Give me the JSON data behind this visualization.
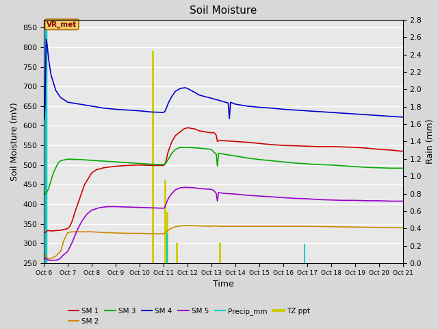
{
  "title": "Soil Moisture",
  "ylabel_left": "Soil Moisture (mV)",
  "ylabel_right": "Rain (mm)",
  "xlabel": "Time",
  "ylim_left": [
    250,
    870
  ],
  "ylim_right": [
    0.0,
    2.8
  ],
  "yticks_left": [
    250,
    300,
    350,
    400,
    450,
    500,
    550,
    600,
    650,
    700,
    750,
    800,
    850
  ],
  "yticks_right": [
    0.0,
    0.2,
    0.4,
    0.6,
    0.8,
    1.0,
    1.2,
    1.4,
    1.6,
    1.8,
    2.0,
    2.2,
    2.4,
    2.6,
    2.8
  ],
  "x_tick_days": [
    6,
    7,
    8,
    9,
    10,
    11,
    12,
    13,
    14,
    15,
    16,
    17,
    18,
    19,
    20,
    21
  ],
  "x_tick_labels": [
    "Oct 6",
    "Oct 7",
    "Oct 8",
    "Oct 9",
    "Oct 10",
    "Oct 11",
    "Oct 12",
    "Oct 13",
    "Oct 14",
    "Oct 15",
    "Oct 16",
    "Oct 17",
    "Oct 18",
    "Oct 19",
    "Oct 20",
    "Oct 21"
  ],
  "fig_bg_color": "#d8d8d8",
  "plot_bg_color": "#e8e8e8",
  "colors": {
    "SM1": "#cc0000",
    "SM2": "#cc8800",
    "SM3": "#00aa00",
    "SM4": "#0000cc",
    "SM5": "#9900cc",
    "Precip": "#00cccc",
    "TZ": "#cccc00"
  },
  "vr_met_box_facecolor": "#f0d070",
  "vr_met_box_edgecolor": "#aa6600",
  "vr_met_text_color": "#880000",
  "sm1": [
    [
      6.0,
      330
    ],
    [
      6.05,
      328
    ],
    [
      6.1,
      330
    ],
    [
      6.15,
      333
    ],
    [
      6.2,
      333
    ],
    [
      6.3,
      332
    ],
    [
      6.5,
      333
    ],
    [
      6.7,
      334
    ],
    [
      7.0,
      338
    ],
    [
      7.1,
      345
    ],
    [
      7.2,
      360
    ],
    [
      7.3,
      380
    ],
    [
      7.5,
      415
    ],
    [
      7.7,
      450
    ],
    [
      7.9,
      470
    ],
    [
      8.0,
      480
    ],
    [
      8.2,
      488
    ],
    [
      8.5,
      493
    ],
    [
      9.0,
      497
    ],
    [
      9.5,
      499
    ],
    [
      10.0,
      500
    ],
    [
      10.5,
      499
    ],
    [
      11.0,
      499
    ],
    [
      11.05,
      501
    ],
    [
      11.1,
      510
    ],
    [
      11.2,
      535
    ],
    [
      11.35,
      560
    ],
    [
      11.5,
      575
    ],
    [
      11.7,
      585
    ],
    [
      11.85,
      592
    ],
    [
      12.0,
      595
    ],
    [
      12.3,
      592
    ],
    [
      12.5,
      587
    ],
    [
      13.0,
      582
    ],
    [
      13.1,
      583
    ],
    [
      13.2,
      576
    ],
    [
      13.25,
      560
    ],
    [
      13.3,
      562
    ],
    [
      13.5,
      562
    ],
    [
      14.0,
      560
    ],
    [
      14.5,
      558
    ],
    [
      15.0,
      555
    ],
    [
      15.5,
      552
    ],
    [
      16.0,
      550
    ],
    [
      16.5,
      549
    ],
    [
      17.0,
      548
    ],
    [
      17.5,
      547
    ],
    [
      18.0,
      547
    ],
    [
      18.5,
      546
    ],
    [
      19.0,
      545
    ],
    [
      19.5,
      543
    ],
    [
      20.0,
      540
    ],
    [
      20.5,
      538
    ],
    [
      21.0,
      535
    ]
  ],
  "sm2": [
    [
      6.0,
      275
    ],
    [
      6.05,
      272
    ],
    [
      6.1,
      268
    ],
    [
      6.15,
      263
    ],
    [
      6.2,
      260
    ],
    [
      6.3,
      262
    ],
    [
      6.5,
      268
    ],
    [
      6.7,
      280
    ],
    [
      6.85,
      310
    ],
    [
      7.0,
      328
    ],
    [
      7.2,
      330
    ],
    [
      7.5,
      330
    ],
    [
      8.0,
      330
    ],
    [
      8.5,
      328
    ],
    [
      9.0,
      327
    ],
    [
      9.5,
      326
    ],
    [
      10.0,
      326
    ],
    [
      10.5,
      325
    ],
    [
      11.0,
      325
    ],
    [
      11.05,
      326
    ],
    [
      11.1,
      330
    ],
    [
      11.3,
      338
    ],
    [
      11.5,
      343
    ],
    [
      11.7,
      345
    ],
    [
      12.0,
      346
    ],
    [
      12.5,
      345
    ],
    [
      13.0,
      344
    ],
    [
      13.1,
      345
    ],
    [
      13.2,
      345
    ],
    [
      13.3,
      344
    ],
    [
      14.0,
      344
    ],
    [
      15.0,
      344
    ],
    [
      16.0,
      344
    ],
    [
      17.0,
      344
    ],
    [
      18.0,
      343
    ],
    [
      19.0,
      342
    ],
    [
      20.0,
      341
    ],
    [
      21.0,
      340
    ]
  ],
  "sm3": [
    [
      6.0,
      425
    ],
    [
      6.1,
      428
    ],
    [
      6.2,
      440
    ],
    [
      6.3,
      460
    ],
    [
      6.4,
      480
    ],
    [
      6.5,
      493
    ],
    [
      6.6,
      505
    ],
    [
      6.7,
      511
    ],
    [
      7.0,
      515
    ],
    [
      7.5,
      514
    ],
    [
      8.0,
      512
    ],
    [
      8.5,
      510
    ],
    [
      9.0,
      508
    ],
    [
      9.5,
      506
    ],
    [
      10.0,
      504
    ],
    [
      10.5,
      502
    ],
    [
      11.0,
      501
    ],
    [
      11.1,
      505
    ],
    [
      11.2,
      515
    ],
    [
      11.35,
      530
    ],
    [
      11.5,
      540
    ],
    [
      11.7,
      545
    ],
    [
      12.0,
      545
    ],
    [
      12.5,
      543
    ],
    [
      13.0,
      540
    ],
    [
      13.1,
      533
    ],
    [
      13.2,
      528
    ],
    [
      13.25,
      497
    ],
    [
      13.3,
      530
    ],
    [
      13.5,
      528
    ],
    [
      14.0,
      523
    ],
    [
      14.5,
      518
    ],
    [
      15.0,
      514
    ],
    [
      15.5,
      511
    ],
    [
      16.0,
      508
    ],
    [
      16.5,
      505
    ],
    [
      17.0,
      503
    ],
    [
      17.5,
      501
    ],
    [
      18.0,
      500
    ],
    [
      18.5,
      498
    ],
    [
      19.0,
      496
    ],
    [
      19.5,
      494
    ],
    [
      20.0,
      493
    ],
    [
      20.5,
      492
    ],
    [
      21.0,
      492
    ]
  ],
  "sm4": [
    [
      6.0,
      615
    ],
    [
      6.02,
      617
    ],
    [
      6.05,
      650
    ],
    [
      6.08,
      760
    ],
    [
      6.1,
      820
    ],
    [
      6.12,
      815
    ],
    [
      6.15,
      800
    ],
    [
      6.2,
      770
    ],
    [
      6.3,
      730
    ],
    [
      6.4,
      710
    ],
    [
      6.5,
      690
    ],
    [
      6.7,
      672
    ],
    [
      7.0,
      660
    ],
    [
      7.5,
      655
    ],
    [
      8.0,
      650
    ],
    [
      8.5,
      645
    ],
    [
      9.0,
      642
    ],
    [
      9.5,
      640
    ],
    [
      10.0,
      638
    ],
    [
      10.5,
      635
    ],
    [
      11.0,
      634
    ],
    [
      11.05,
      636
    ],
    [
      11.1,
      642
    ],
    [
      11.2,
      658
    ],
    [
      11.35,
      675
    ],
    [
      11.5,
      688
    ],
    [
      11.7,
      695
    ],
    [
      11.9,
      697
    ],
    [
      12.0,
      695
    ],
    [
      12.3,
      685
    ],
    [
      12.5,
      678
    ],
    [
      13.0,
      670
    ],
    [
      13.3,
      665
    ],
    [
      13.7,
      658
    ],
    [
      13.75,
      618
    ],
    [
      13.8,
      660
    ],
    [
      14.0,
      655
    ],
    [
      14.5,
      650
    ],
    [
      15.0,
      647
    ],
    [
      15.5,
      645
    ],
    [
      16.0,
      642
    ],
    [
      16.5,
      640
    ],
    [
      17.0,
      638
    ],
    [
      17.5,
      636
    ],
    [
      18.0,
      634
    ],
    [
      18.5,
      632
    ],
    [
      19.0,
      630
    ],
    [
      19.5,
      628
    ],
    [
      20.0,
      626
    ],
    [
      20.5,
      624
    ],
    [
      21.0,
      622
    ]
  ],
  "sm5": [
    [
      6.0,
      265
    ],
    [
      6.05,
      263
    ],
    [
      6.1,
      261
    ],
    [
      6.15,
      259
    ],
    [
      6.2,
      258
    ],
    [
      6.25,
      257
    ],
    [
      6.3,
      257
    ],
    [
      6.5,
      258
    ],
    [
      6.6,
      259
    ],
    [
      6.7,
      263
    ],
    [
      6.8,
      270
    ],
    [
      7.0,
      280
    ],
    [
      7.2,
      305
    ],
    [
      7.4,
      335
    ],
    [
      7.6,
      358
    ],
    [
      7.8,
      375
    ],
    [
      8.0,
      385
    ],
    [
      8.3,
      391
    ],
    [
      8.5,
      393
    ],
    [
      8.7,
      394
    ],
    [
      9.0,
      394
    ],
    [
      9.5,
      393
    ],
    [
      10.0,
      392
    ],
    [
      10.5,
      391
    ],
    [
      11.0,
      390
    ],
    [
      11.05,
      392
    ],
    [
      11.1,
      400
    ],
    [
      11.2,
      415
    ],
    [
      11.35,
      428
    ],
    [
      11.5,
      437
    ],
    [
      11.7,
      442
    ],
    [
      11.9,
      443
    ],
    [
      12.0,
      443
    ],
    [
      12.3,
      442
    ],
    [
      12.5,
      440
    ],
    [
      13.0,
      438
    ],
    [
      13.1,
      435
    ],
    [
      13.2,
      428
    ],
    [
      13.25,
      408
    ],
    [
      13.3,
      430
    ],
    [
      13.5,
      428
    ],
    [
      14.0,
      426
    ],
    [
      14.5,
      423
    ],
    [
      15.0,
      421
    ],
    [
      15.5,
      419
    ],
    [
      16.0,
      417
    ],
    [
      16.5,
      415
    ],
    [
      17.0,
      414
    ],
    [
      17.5,
      412
    ],
    [
      18.0,
      411
    ],
    [
      18.5,
      410
    ],
    [
      19.0,
      410
    ],
    [
      19.5,
      409
    ],
    [
      20.0,
      409
    ],
    [
      20.5,
      408
    ],
    [
      21.0,
      408
    ]
  ],
  "tz_events": [
    {
      "x": 6.1,
      "ymax_val": 860
    },
    {
      "x": 10.55,
      "ymax_val": 790
    },
    {
      "x": 11.05,
      "ymax_val": 460
    },
    {
      "x": 11.15,
      "ymax_val": 380
    },
    {
      "x": 11.55,
      "ymax_val": 300
    },
    {
      "x": 13.35,
      "ymax_val": 300
    }
  ],
  "precip_events": [
    {
      "x": 11.15,
      "height_mm": 0.35
    },
    {
      "x": 16.9,
      "height_mm": 0.22
    }
  ]
}
